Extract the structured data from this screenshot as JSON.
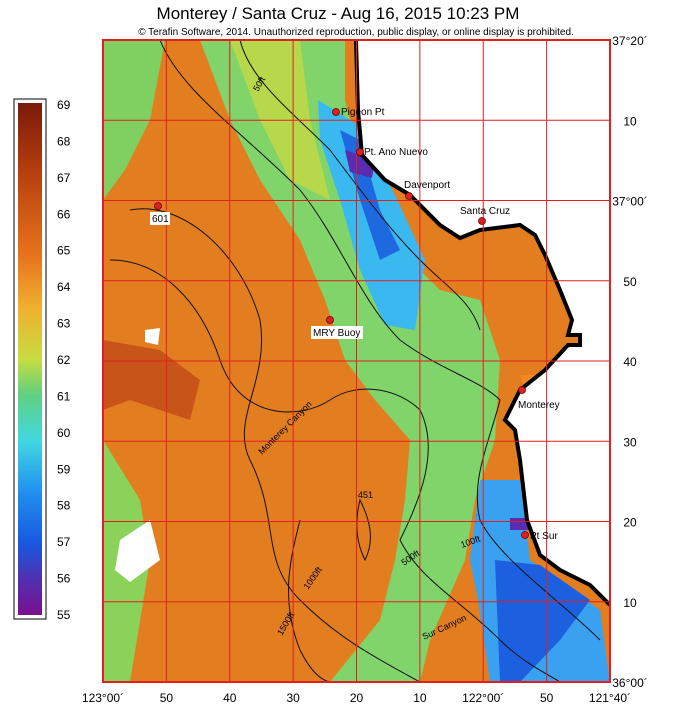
{
  "title": "Monterey / Santa Cruz - Aug 16, 2015 10:23 PM",
  "copyright": "© Terafin Software,  2014.  Unauthorized reproduction, public display, or online display is prohibited.",
  "colorbar": {
    "ticks": [
      69,
      68,
      67,
      66,
      65,
      64,
      63,
      62,
      61,
      60,
      59,
      58,
      57,
      56,
      55
    ]
  },
  "latitude_labels": [
    "37°20´",
    "10",
    "37°00´",
    "50",
    "40",
    "30",
    "20",
    "10",
    "36°00´"
  ],
  "longitude_labels": [
    "123°00´",
    "50",
    "40",
    "30",
    "20",
    "10",
    "122°00´",
    "50",
    "121°40´"
  ],
  "places": [
    "Pigeon Pt",
    "Pt. Ano Nuevo",
    "Davenport",
    "Santa Cruz",
    "601",
    "MRY Buoy",
    "Monterey",
    "Pt Sur"
  ],
  "contour_labels": [
    "50ft",
    "Monterey Canyon",
    "451",
    "100ft",
    "500ft",
    "1000ft",
    "1500ft",
    "Sur Canyon"
  ]
}
